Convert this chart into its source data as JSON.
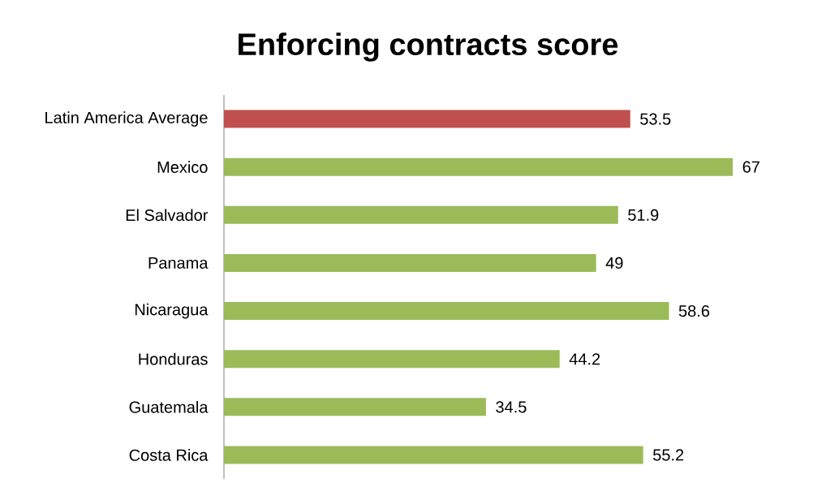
{
  "chart_data": {
    "type": "bar",
    "orientation": "horizontal",
    "title": "Enforcing contracts score",
    "categories": [
      "Latin America Average",
      "Mexico",
      "El Salvador",
      "Panama",
      "Nicaragua",
      "Honduras",
      "Guatemala",
      "Costa Rica"
    ],
    "values": [
      53.5,
      67,
      51.9,
      49,
      58.6,
      44.2,
      34.5,
      55.2
    ],
    "colors": [
      "#c0504d",
      "#9bbb59",
      "#9bbb59",
      "#9bbb59",
      "#9bbb59",
      "#9bbb59",
      "#9bbb59",
      "#9bbb59"
    ],
    "data_labels": true
  }
}
